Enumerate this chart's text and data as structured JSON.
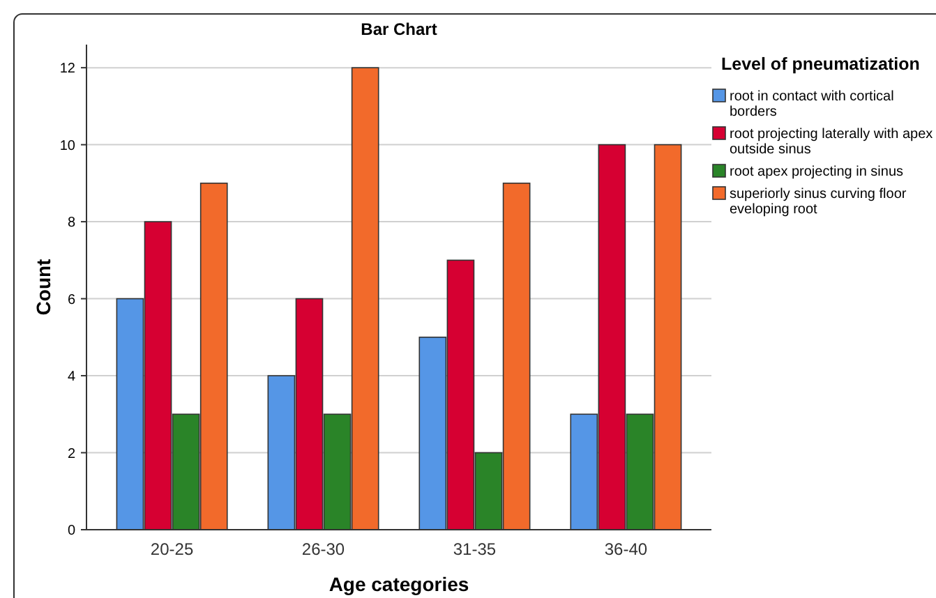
{
  "chart_data": {
    "type": "bar",
    "title": "Bar Chart",
    "xlabel": "Age categories",
    "ylabel": "Count",
    "legend_title": "Level of pneumatization",
    "categories": [
      "20-25",
      "26-30",
      "31-35",
      "36-40"
    ],
    "series": [
      {
        "name": "root in contact with cortical borders",
        "color": "#5596e6",
        "values": [
          6,
          4,
          5,
          3
        ]
      },
      {
        "name": "root projecting laterally with apex outside sinus",
        "color": "#d60032",
        "values": [
          8,
          6,
          7,
          10
        ]
      },
      {
        "name": "root apex projecting in sinus",
        "color": "#2a8428",
        "values": [
          3,
          3,
          2,
          3
        ]
      },
      {
        "name": "superiorly sinus curving floor eveloping root",
        "color": "#f26a2b",
        "values": [
          9,
          12,
          9,
          10
        ]
      }
    ],
    "ylim": [
      0,
      12.6
    ],
    "yticks": [
      0,
      2,
      4,
      6,
      8,
      10,
      12
    ],
    "grid": "y",
    "legend": "right"
  }
}
